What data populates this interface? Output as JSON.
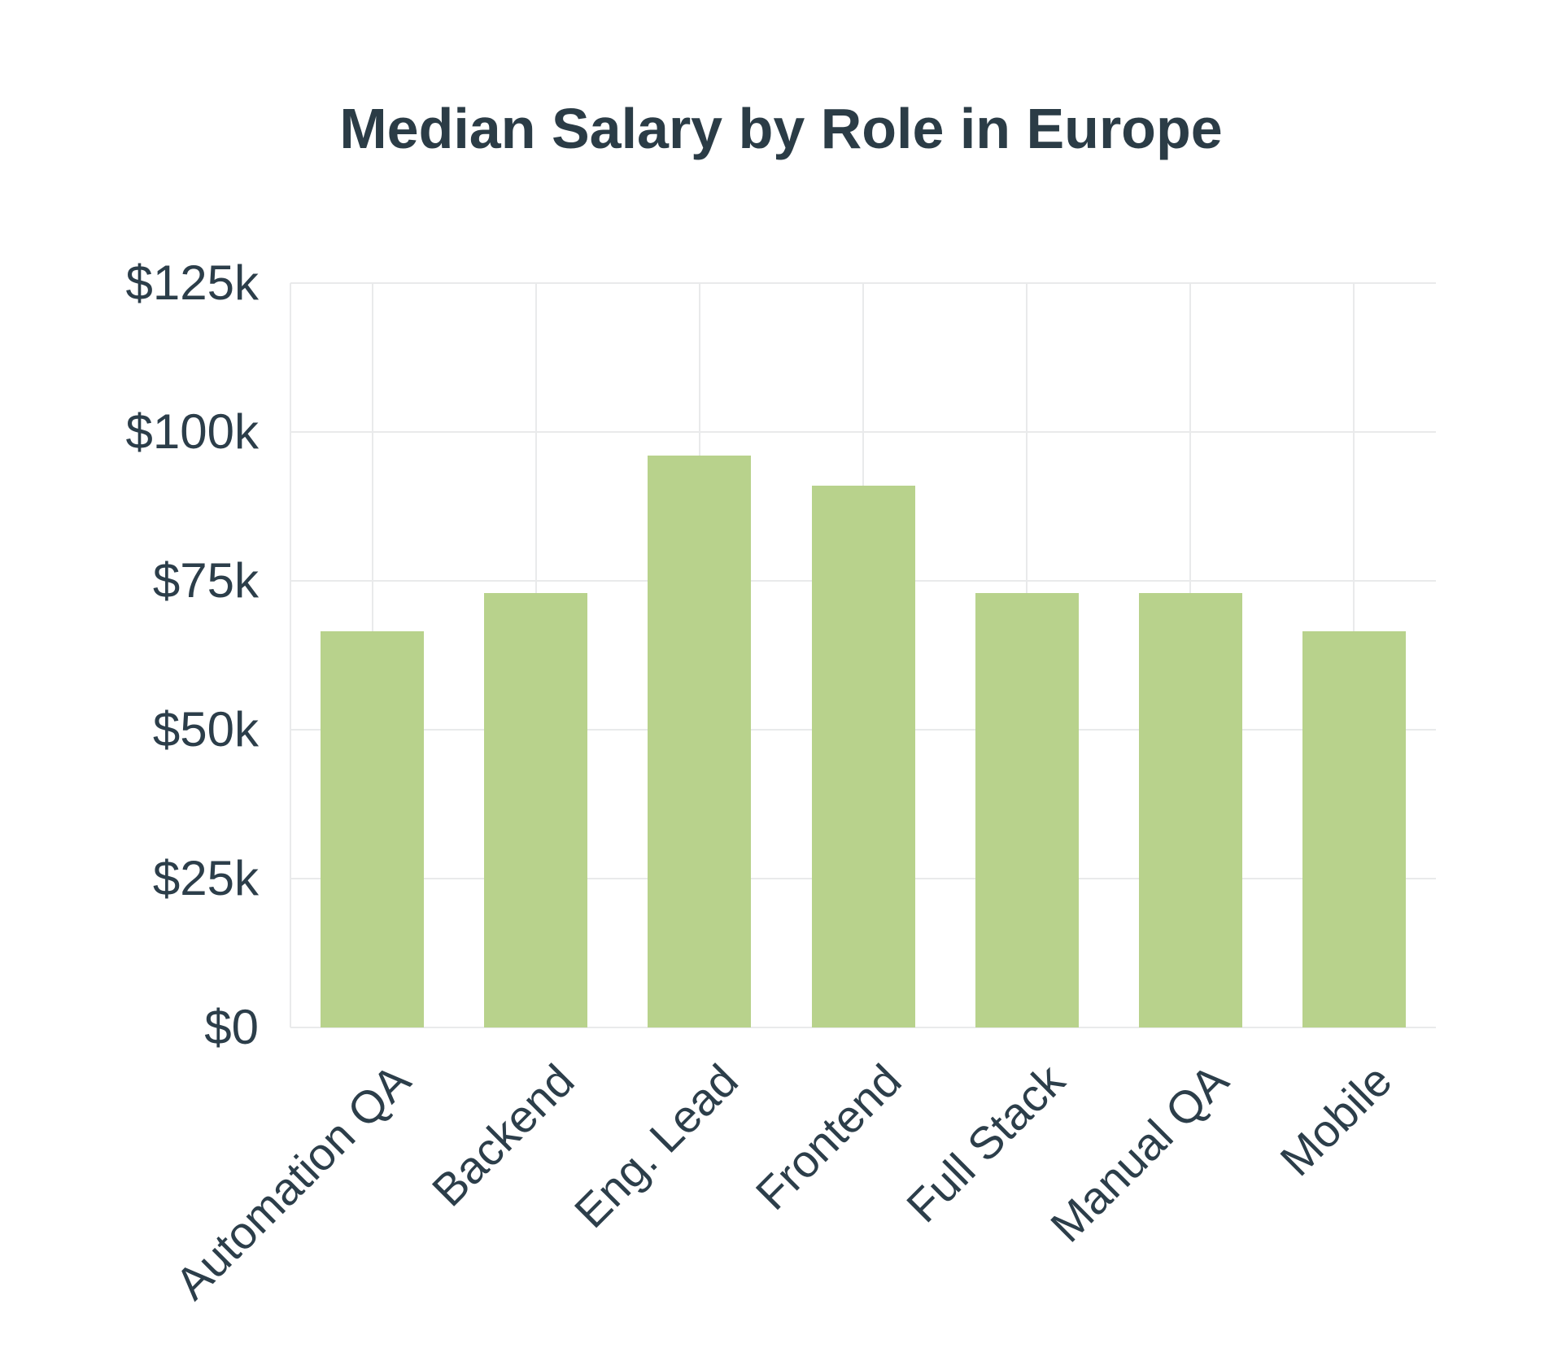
{
  "title": "Median Salary by Role in Europe",
  "colors": {
    "background": "#ffffff",
    "title": "#2b3c46",
    "text": "#2c3e4a",
    "grid": "#e9eaeb",
    "bar": "#b8d28c"
  },
  "chart_data": {
    "type": "bar",
    "title": "Median Salary by Role in Europe",
    "categories": [
      "Automation QA",
      "Backend",
      "Eng. Lead",
      "Frontend",
      "Full Stack",
      "Manual QA",
      "Mobile"
    ],
    "values": [
      66.5,
      73,
      96,
      91,
      73,
      73,
      66.5
    ],
    "values_unit": "USD thousands per year",
    "xlabel": "",
    "ylabel": "",
    "ylim": [
      0,
      125
    ],
    "yticks": [
      0,
      25,
      50,
      75,
      100,
      125
    ],
    "ytick_labels": [
      "$0",
      "$25k",
      "$50k",
      "$75k",
      "$100k",
      "$125k"
    ],
    "grid": "on",
    "legend": "none",
    "x_label_rotation_deg": -45
  }
}
